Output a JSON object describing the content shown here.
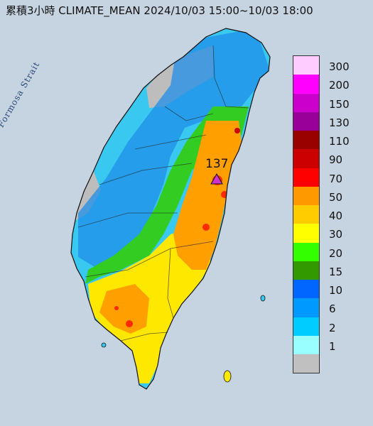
{
  "header": {
    "title": "累積3小時 CLIMATE_MEAN 2024/10/03 15:00~10/03 18:00"
  },
  "map": {
    "region_label": "Formosa Strait",
    "max_value_label": "137",
    "max_marker_color": "#cc33cc"
  },
  "legend": {
    "items": [
      {
        "label": "300",
        "color": "#ffccff"
      },
      {
        "label": "200",
        "color": "#ff00ff"
      },
      {
        "label": "150",
        "color": "#cc00cc"
      },
      {
        "label": "130",
        "color": "#990099"
      },
      {
        "label": "110",
        "color": "#990000"
      },
      {
        "label": "90",
        "color": "#cc0000"
      },
      {
        "label": "70",
        "color": "#ff0000"
      },
      {
        "label": "50",
        "color": "#ff9900"
      },
      {
        "label": "40",
        "color": "#ffcc00"
      },
      {
        "label": "30",
        "color": "#ffff00"
      },
      {
        "label": "20",
        "color": "#33ff00"
      },
      {
        "label": "15",
        "color": "#339900"
      },
      {
        "label": "10",
        "color": "#0066ff"
      },
      {
        "label": "6",
        "color": "#0099ff"
      },
      {
        "label": "2",
        "color": "#00ccff"
      },
      {
        "label": "1",
        "color": "#99ffff"
      },
      {
        "label": "",
        "color": "#c0c0c0"
      }
    ]
  }
}
